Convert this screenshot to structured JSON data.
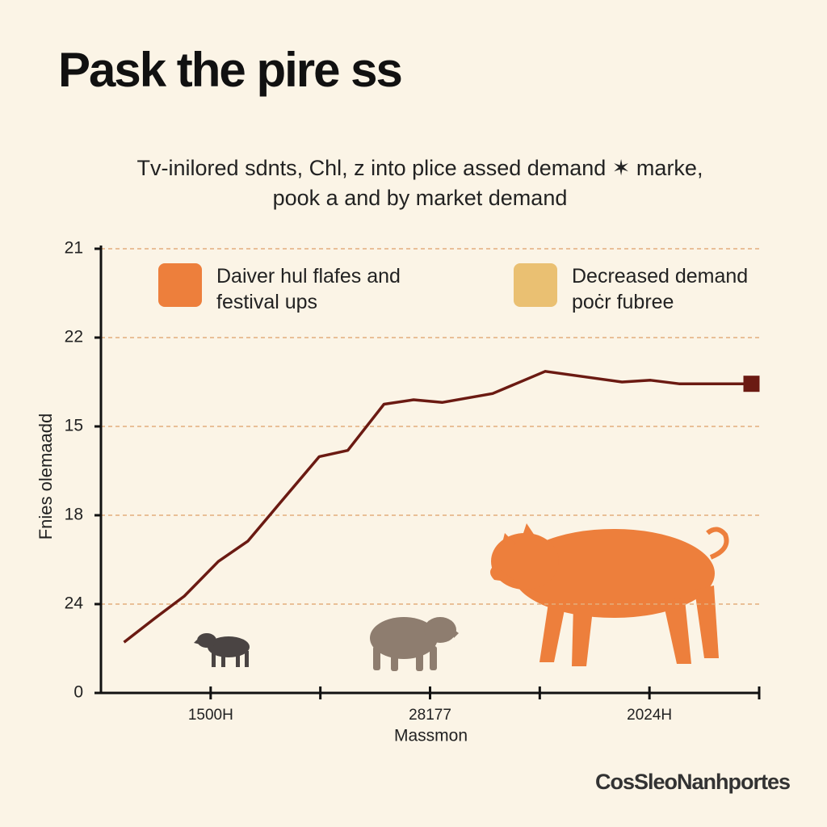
{
  "chart_data": {
    "type": "line",
    "title": "Pask the pire ss",
    "subtitle": "Tv-inilored sdnts, Chl, z into plice assed demand ✶ marke, pook a and by market demand",
    "y_label": "Fnies olemaadd",
    "x_label": "Massmon",
    "watermark": "CosSleoNanhportes",
    "legend": [
      {
        "label": "Daiver hul flafes and festival ups",
        "color": "#ed7f3c"
      },
      {
        "label": "Decreased demand poċr fubree",
        "color": "#eac072"
      }
    ],
    "xlim": [
      0,
      6
    ],
    "xticks": [
      {
        "value": 1,
        "label": "1500H"
      },
      {
        "value": 3,
        "label": "28177"
      },
      {
        "value": 5,
        "label": "2024H"
      }
    ],
    "xminor_ticks": [
      2,
      4,
      6
    ],
    "ylim": [
      0,
      5
    ],
    "yticks": [
      0,
      {
        "value": 1,
        "label": "24"
      },
      {
        "value": 2,
        "label": "18"
      },
      {
        "value": 3,
        "label": "15"
      },
      {
        "value": 4,
        "label": "22"
      },
      {
        "value": 5,
        "label": "21"
      }
    ],
    "grid": true,
    "grid_color": "#e3ad7d",
    "series": [
      {
        "color": "#6b1a12",
        "x": [
          0.21,
          0.48,
          0.76,
          1.07,
          1.34,
          1.62,
          1.99,
          2.25,
          2.58,
          2.85,
          3.11,
          3.57,
          4.05,
          4.75,
          5.01,
          5.27,
          5.93
        ],
        "values": [
          0.57,
          0.83,
          1.09,
          1.48,
          1.71,
          2.12,
          2.66,
          2.73,
          3.25,
          3.3,
          3.27,
          3.37,
          3.62,
          3.5,
          3.52,
          3.48,
          3.48
        ]
      }
    ]
  }
}
